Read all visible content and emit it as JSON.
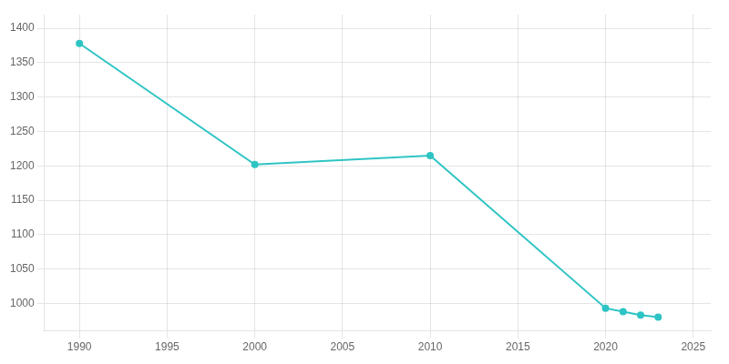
{
  "chart_data": {
    "type": "line",
    "x": [
      1990,
      2000,
      2010,
      2020,
      2021,
      2022,
      2023
    ],
    "values": [
      1378,
      1202,
      1215,
      993,
      988,
      983,
      980
    ],
    "color": "#2EC4C4",
    "marker": "circle",
    "xlim": [
      1988,
      2026
    ],
    "xticks": [
      1990,
      1995,
      2000,
      2005,
      2010,
      2015,
      2020,
      2025
    ],
    "ylim": [
      960,
      1420
    ],
    "yticks": [
      1000,
      1050,
      1100,
      1150,
      1200,
      1250,
      1300,
      1350,
      1400
    ],
    "grid": true
  }
}
